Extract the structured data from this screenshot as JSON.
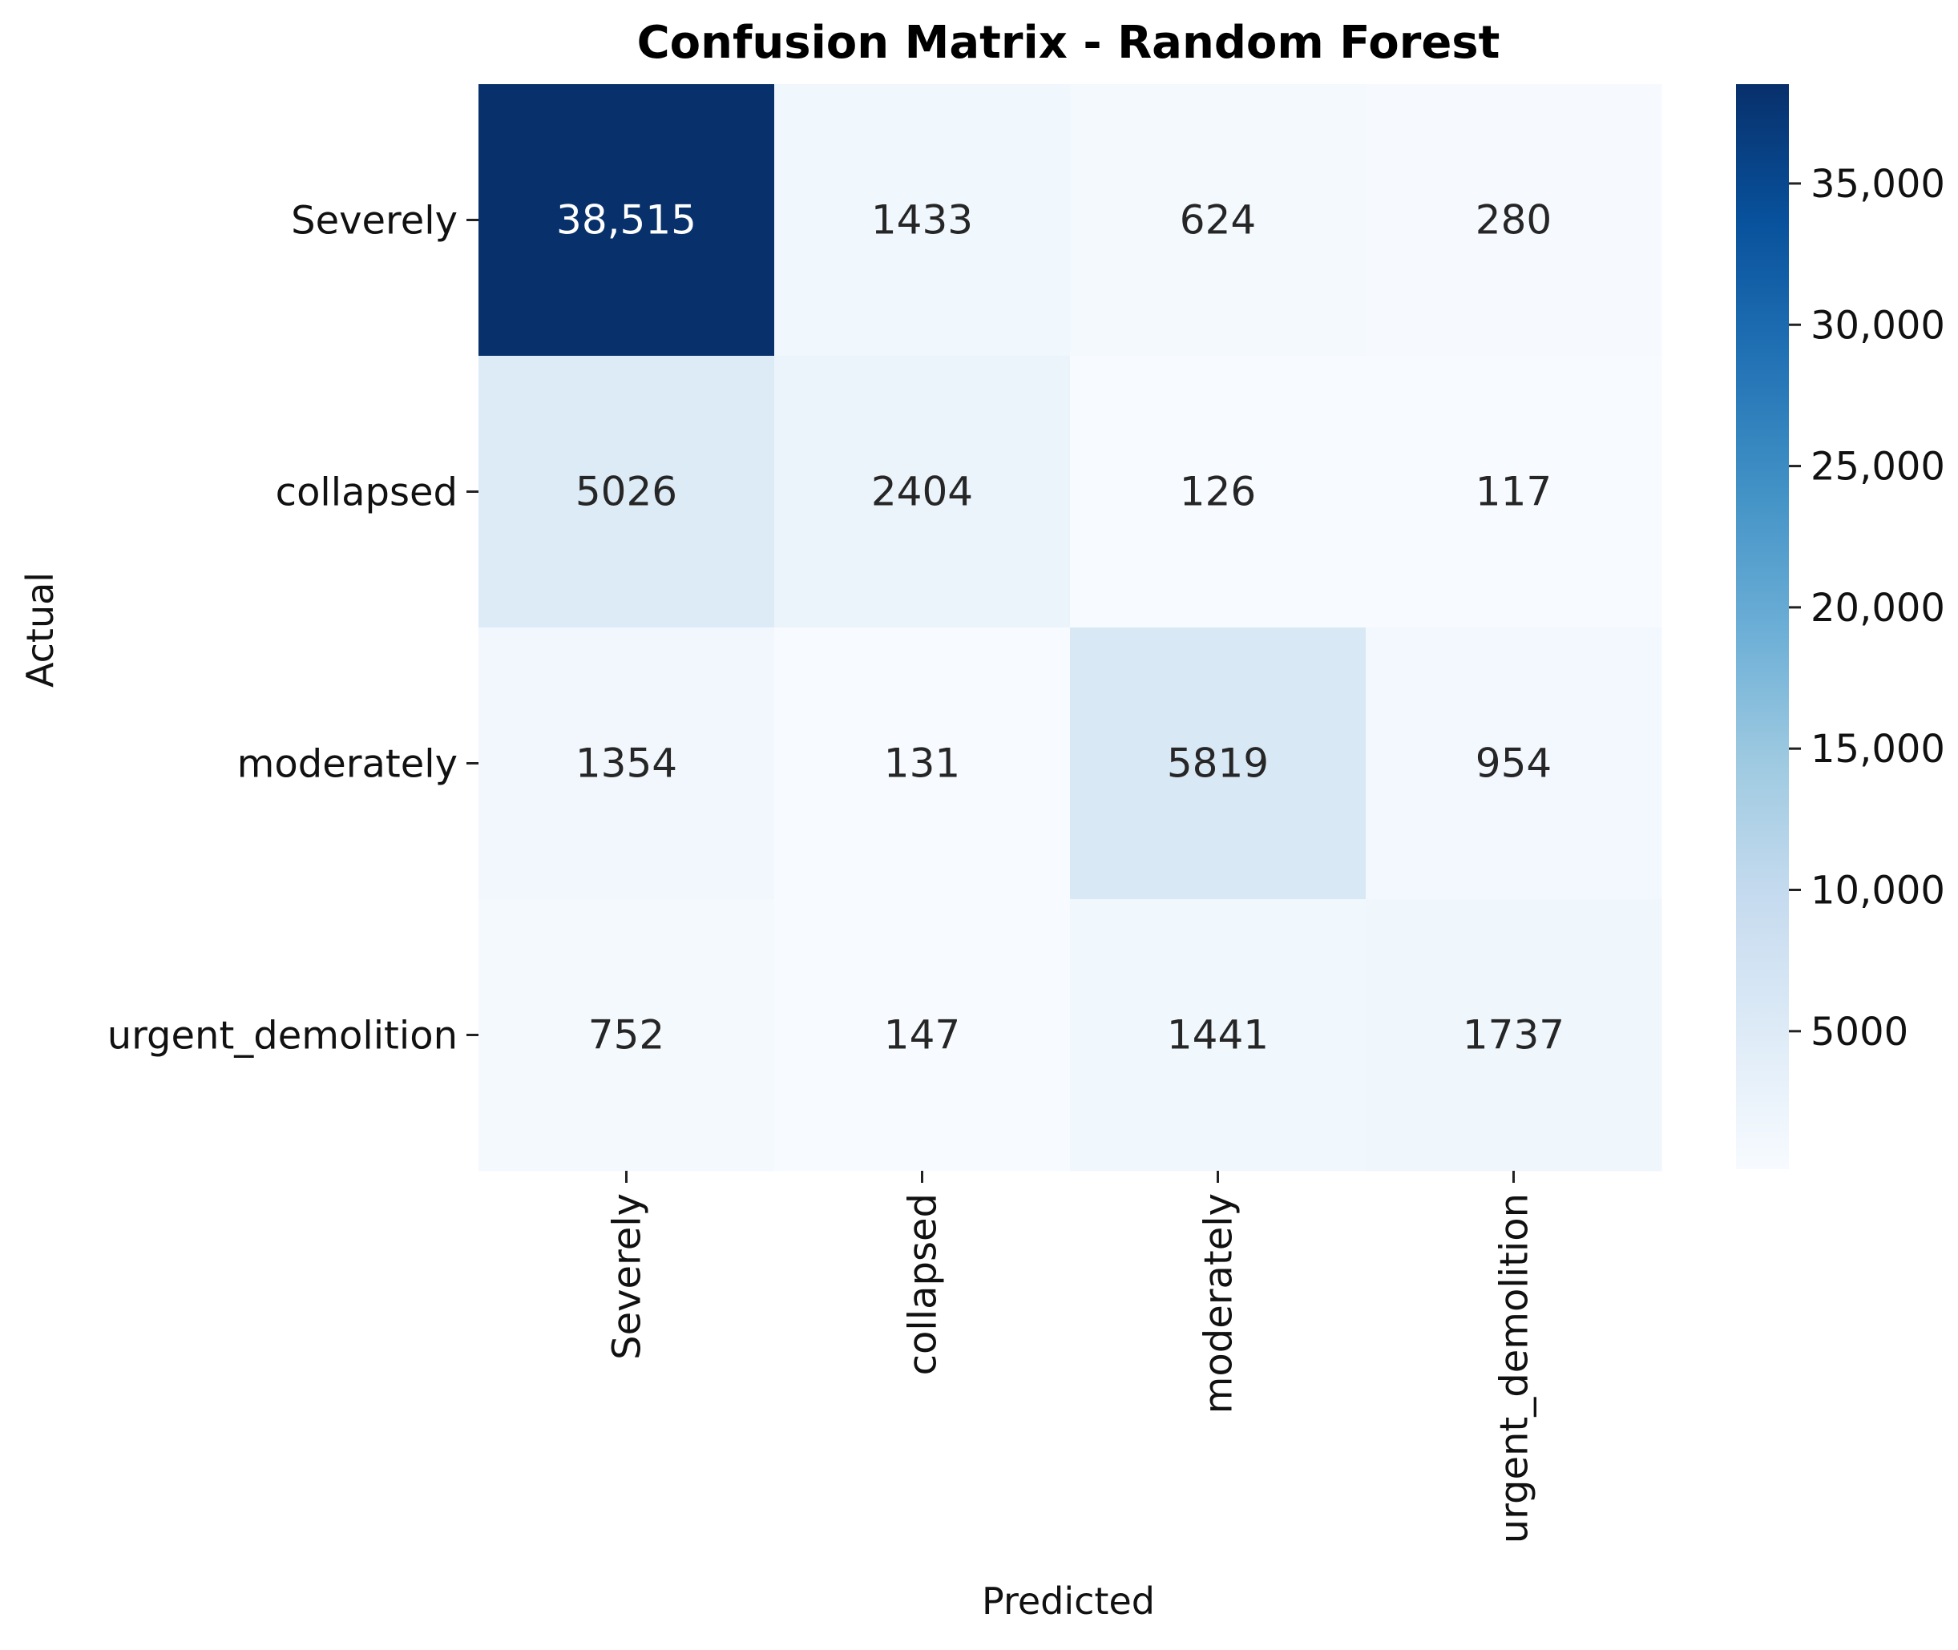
{
  "chart_data": {
    "type": "heatmap",
    "title": "Confusion Matrix - Random Forest",
    "xlabel": "Predicted",
    "ylabel": "Actual",
    "x_categories": [
      "Severely",
      "collapsed",
      "moderately",
      "urgent_demolition"
    ],
    "y_categories": [
      "Severely",
      "collapsed",
      "moderately",
      "urgent_demolition"
    ],
    "values": [
      [
        38515,
        1433,
        624,
        280
      ],
      [
        5026,
        2404,
        126,
        117
      ],
      [
        1354,
        131,
        5819,
        954
      ],
      [
        752,
        147,
        1441,
        1737
      ]
    ],
    "cell_labels": [
      [
        "38,515",
        "1433",
        "624",
        "280"
      ],
      [
        "5026",
        "2404",
        "126",
        "117"
      ],
      [
        "1354",
        "131",
        "5819",
        "954"
      ],
      [
        "752",
        "147",
        "1441",
        "1737"
      ]
    ],
    "colormap": "Blues",
    "colorbar": {
      "range": [
        117,
        38515
      ],
      "ticks": [
        5000,
        10000,
        15000,
        20000,
        25000,
        30000,
        35000
      ],
      "tick_labels": [
        "5000",
        "10,000",
        "15,000",
        "20,000",
        "25,000",
        "30,000",
        "35,000"
      ]
    },
    "grid": false
  }
}
